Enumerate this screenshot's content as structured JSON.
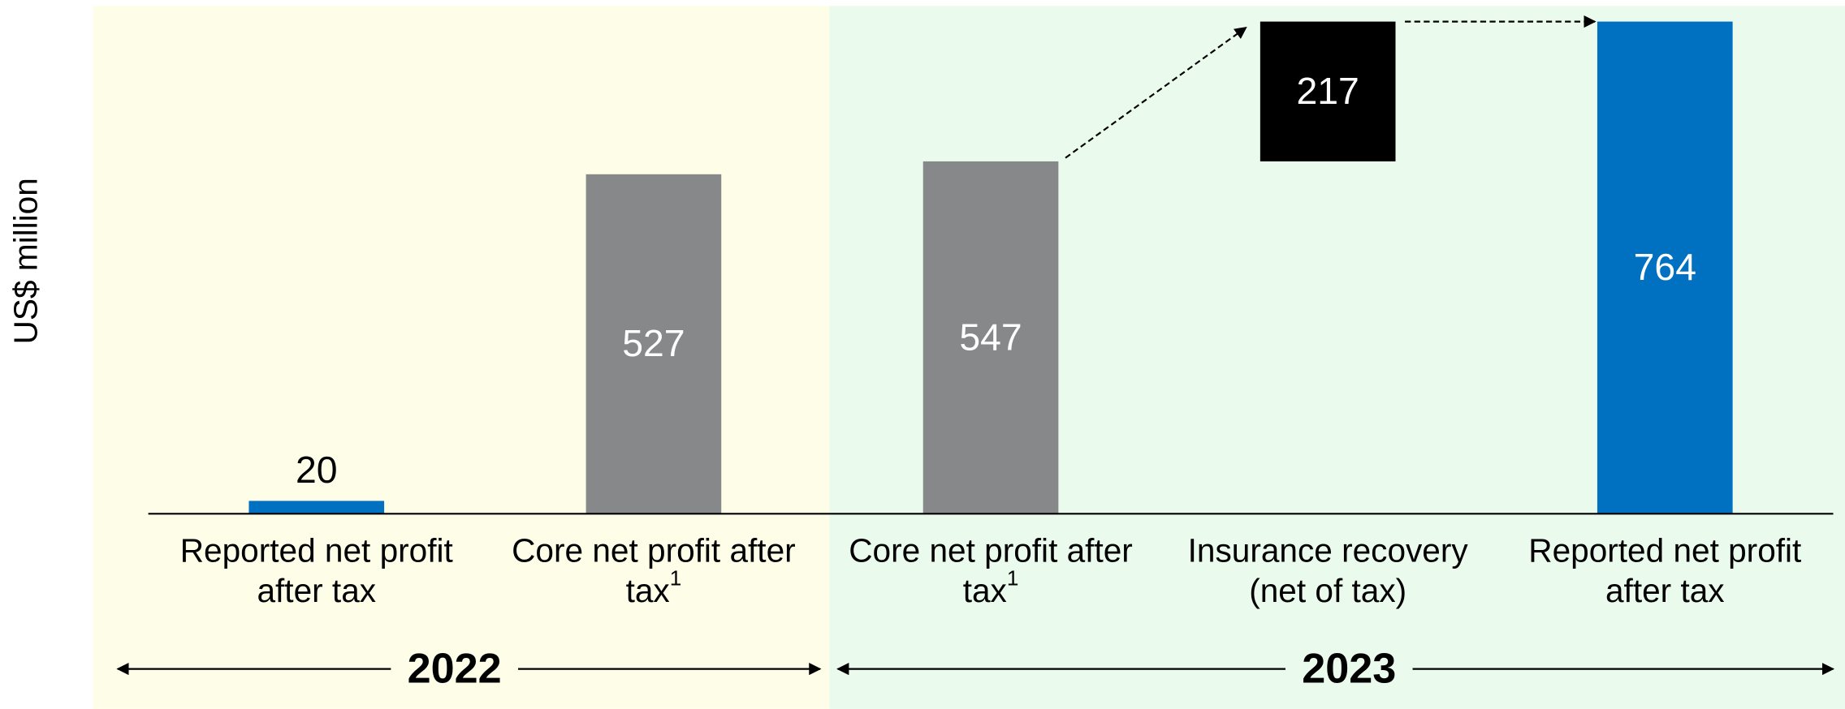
{
  "chart_data": {
    "type": "waterfall",
    "y_axis_label": "US$ million",
    "categories": [
      "Reported net profit after tax",
      "Core net profit after tax",
      "Core net profit after tax",
      "Insurance recovery (net of tax)",
      "Reported net profit after tax"
    ],
    "category_notes": [
      null,
      "1",
      "1",
      null,
      null
    ],
    "values": [
      20,
      527,
      547,
      217,
      764
    ],
    "kinds": [
      "total",
      "total",
      "total",
      "increase",
      "total"
    ],
    "colors": [
      "#0070c0",
      "#868889",
      "#868889",
      "#000000",
      "#0070c0"
    ],
    "ylim": [
      0,
      780
    ],
    "groups": [
      {
        "label": "2022",
        "first": 0,
        "last": 1,
        "color": "#fefee8"
      },
      {
        "label": "2023",
        "first": 2,
        "last": 4,
        "color": "#eafbed"
      }
    ]
  }
}
